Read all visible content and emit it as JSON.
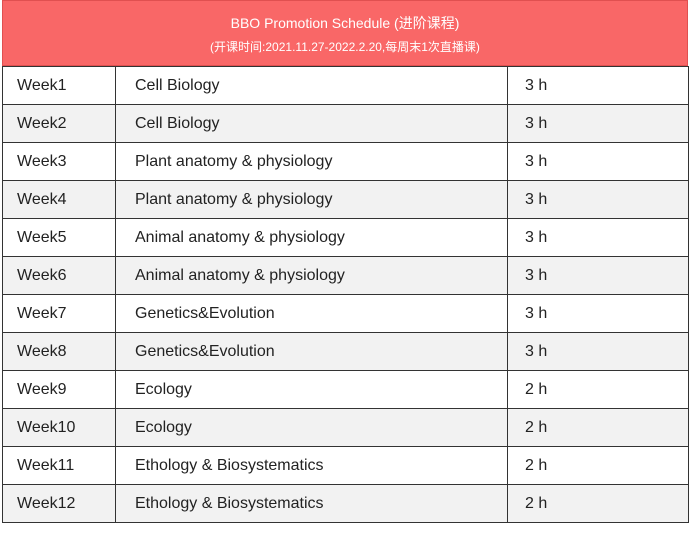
{
  "header": {
    "title": "BBO Promotion Schedule (进阶课程)",
    "subtitle": "(开课时间:2021.11.27-2022.2.20,每周末1次直播课)"
  },
  "table": {
    "rows": [
      [
        "Week1",
        "Cell Biology",
        "3 h"
      ],
      [
        "Week2",
        "Cell Biology",
        "3 h"
      ],
      [
        "Week3",
        "Plant anatomy & physiology",
        "3 h"
      ],
      [
        "Week4",
        "Plant anatomy & physiology",
        "3 h"
      ],
      [
        "Week5",
        "Animal anatomy & physiology",
        "3 h"
      ],
      [
        "Week6",
        "Animal anatomy & physiology",
        "3 h"
      ],
      [
        "Week7",
        "Genetics&Evolution",
        "3 h"
      ],
      [
        "Week8",
        "Genetics&Evolution",
        "3 h"
      ],
      [
        "Week9",
        "Ecology",
        "2 h"
      ],
      [
        "Week10",
        "Ecology",
        "2 h"
      ],
      [
        "Week11",
        "Ethology & Biosystematics",
        "2 h"
      ],
      [
        "Week12",
        "Ethology & Biosystematics",
        "2 h"
      ]
    ]
  }
}
